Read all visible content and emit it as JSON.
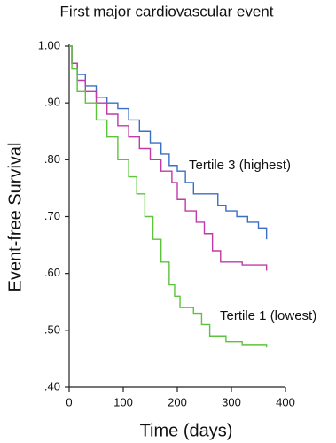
{
  "chart_data": {
    "type": "line",
    "step": true,
    "title": "First major cardiovascular event",
    "xlabel": "Time (days)",
    "ylabel": "Event-free Survival",
    "xlim": [
      0,
      400
    ],
    "ylim": [
      0.4,
      1.0
    ],
    "xticks": [
      0,
      100,
      200,
      300,
      400
    ],
    "yticks": [
      {
        "value": 1.0,
        "label": "1.00"
      },
      {
        "value": 0.9,
        "label": ".90"
      },
      {
        "value": 0.8,
        "label": ".80"
      },
      {
        "value": 0.7,
        "label": ".70"
      },
      {
        "value": 0.6,
        "label": ".60"
      },
      {
        "value": 0.5,
        "label": ".50"
      },
      {
        "value": 0.4,
        "label": ".40"
      }
    ],
    "grid": false,
    "series": [
      {
        "name": "Tertile 3 (highest)",
        "color": "#3a6fc4",
        "x": [
          0,
          5,
          15,
          30,
          50,
          70,
          90,
          110,
          130,
          150,
          170,
          185,
          200,
          215,
          230,
          260,
          275,
          290,
          310,
          330,
          350,
          365
        ],
        "values": [
          1.0,
          0.97,
          0.95,
          0.93,
          0.91,
          0.9,
          0.89,
          0.87,
          0.85,
          0.83,
          0.81,
          0.79,
          0.78,
          0.76,
          0.74,
          0.74,
          0.72,
          0.71,
          0.7,
          0.69,
          0.68,
          0.66
        ]
      },
      {
        "color": "#c03aa8",
        "x": [
          0,
          5,
          15,
          30,
          50,
          70,
          90,
          110,
          130,
          150,
          170,
          190,
          200,
          215,
          235,
          250,
          265,
          280,
          320,
          365
        ],
        "values": [
          1.0,
          0.97,
          0.94,
          0.92,
          0.9,
          0.88,
          0.86,
          0.84,
          0.82,
          0.8,
          0.78,
          0.76,
          0.73,
          0.71,
          0.69,
          0.67,
          0.64,
          0.62,
          0.615,
          0.605
        ]
      },
      {
        "name": "Tertile 1 (lowest)",
        "color": "#5cc43a",
        "x": [
          0,
          5,
          15,
          30,
          50,
          70,
          90,
          110,
          125,
          140,
          155,
          170,
          185,
          195,
          205,
          230,
          245,
          260,
          290,
          320,
          365
        ],
        "values": [
          1.0,
          0.96,
          0.92,
          0.9,
          0.87,
          0.84,
          0.8,
          0.77,
          0.74,
          0.7,
          0.66,
          0.62,
          0.58,
          0.56,
          0.54,
          0.53,
          0.51,
          0.49,
          0.48,
          0.475,
          0.47
        ]
      }
    ]
  }
}
